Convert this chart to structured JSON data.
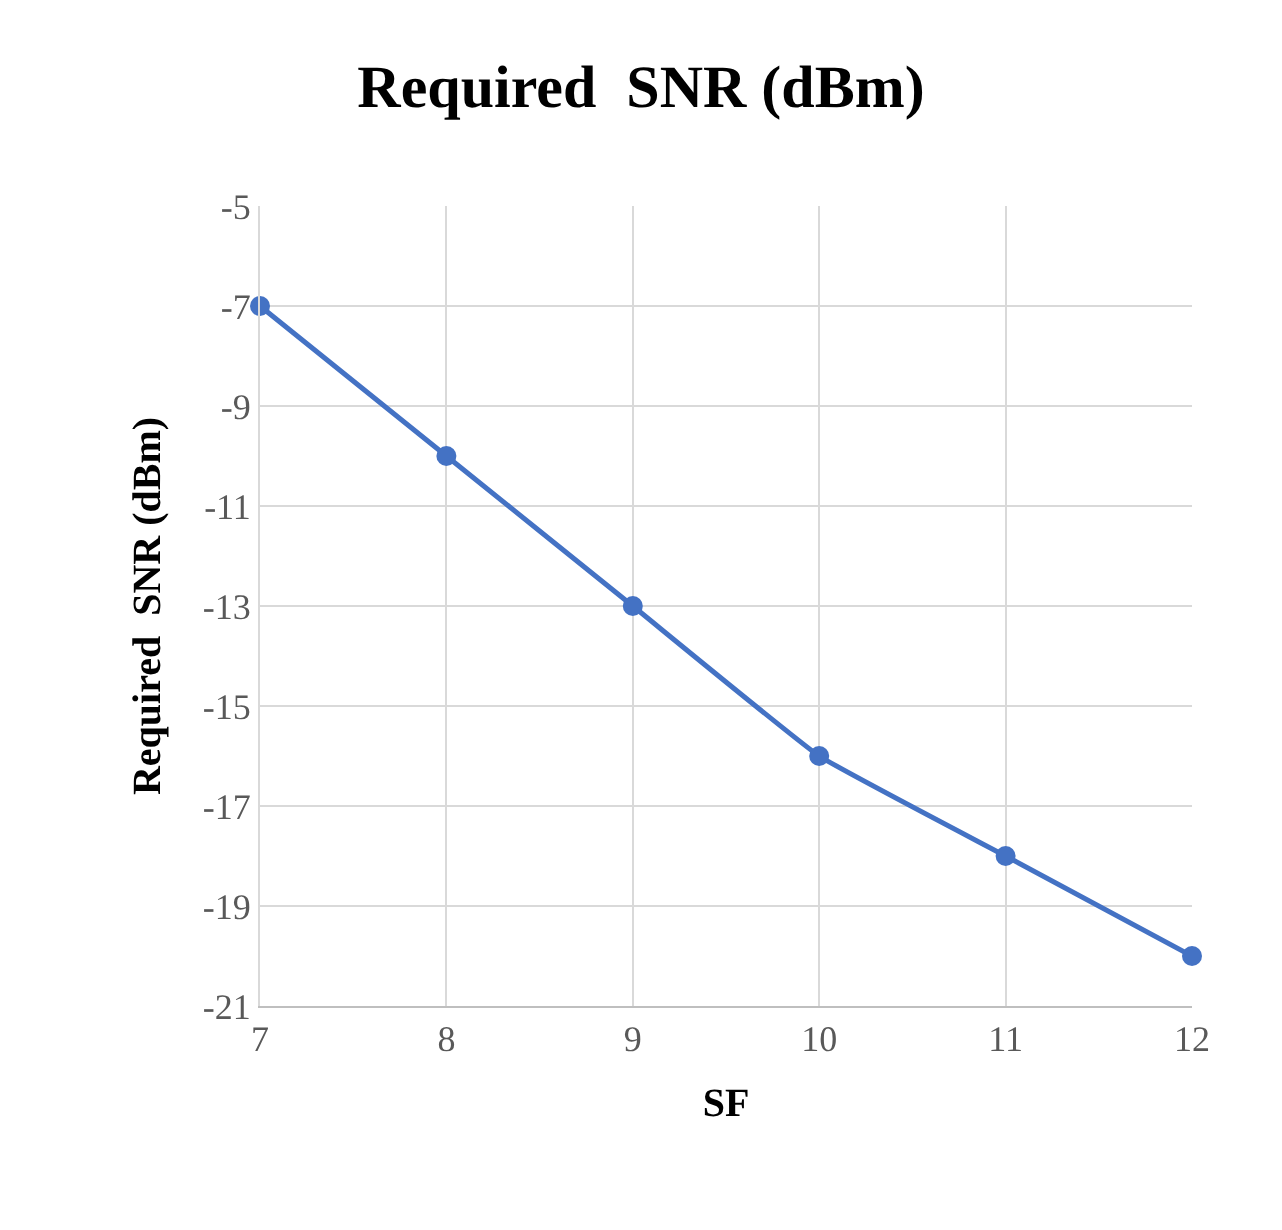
{
  "chart_data": {
    "type": "line",
    "title": "Required  SNR (dBm)",
    "xlabel": "SF",
    "ylabel": "Required  SNR (dBm)",
    "x": [
      7,
      8,
      9,
      10,
      11,
      12
    ],
    "series": [
      {
        "color": "#4472c4",
        "values": [
          -7,
          -10,
          -13,
          -16,
          -18,
          -20
        ]
      }
    ],
    "xlim": [
      7,
      12
    ],
    "xticks": [
      7,
      8,
      9,
      10,
      11,
      12
    ],
    "ylim": [
      -21,
      -5
    ],
    "yticks": [
      -5,
      -7,
      -9,
      -11,
      -13,
      -15,
      -17,
      -19,
      -21
    ],
    "grid": true,
    "marker": "circle",
    "line_style": "solid",
    "legend": false
  }
}
